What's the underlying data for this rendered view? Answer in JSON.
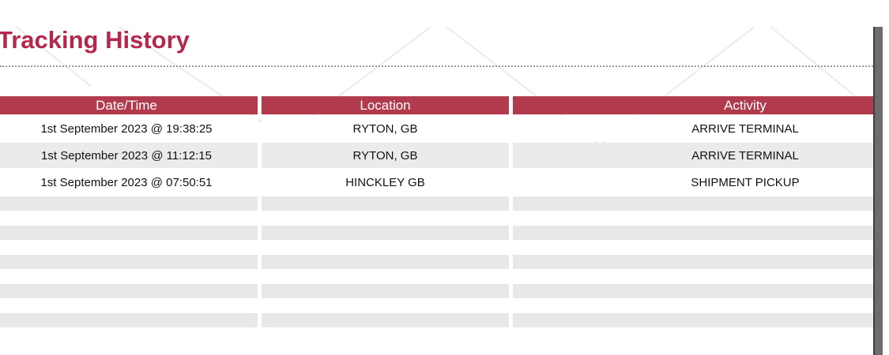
{
  "page": {
    "title": "Tracking History"
  },
  "table": {
    "headers": [
      "Date/Time",
      "Location",
      "Activity"
    ],
    "rows": [
      [
        "1st September 2023 @ 19:38:25",
        "RYTON, GB",
        "ARRIVE TERMINAL"
      ],
      [
        "1st September 2023 @ 11:12:15",
        "RYTON, GB",
        "ARRIVE TERMINAL"
      ],
      [
        "1st September 2023 @ 07:50:51",
        "HINCKLEY GB",
        "SHIPMENT PICKUP"
      ]
    ],
    "empty_row_count": 5
  },
  "colors": {
    "heading_text": "#b5284e",
    "header_bg": "#b13b4c",
    "header_text": "#ffffff",
    "row_alt_bg": "#ebebeb",
    "empty_row_bg": "#e8e8e8",
    "dotted_rule": "#999999",
    "scrollbar_thumb": "#6d6d6d",
    "scrollbar_border": "#3f3f3f",
    "watermark_line": "#ebebeb"
  }
}
